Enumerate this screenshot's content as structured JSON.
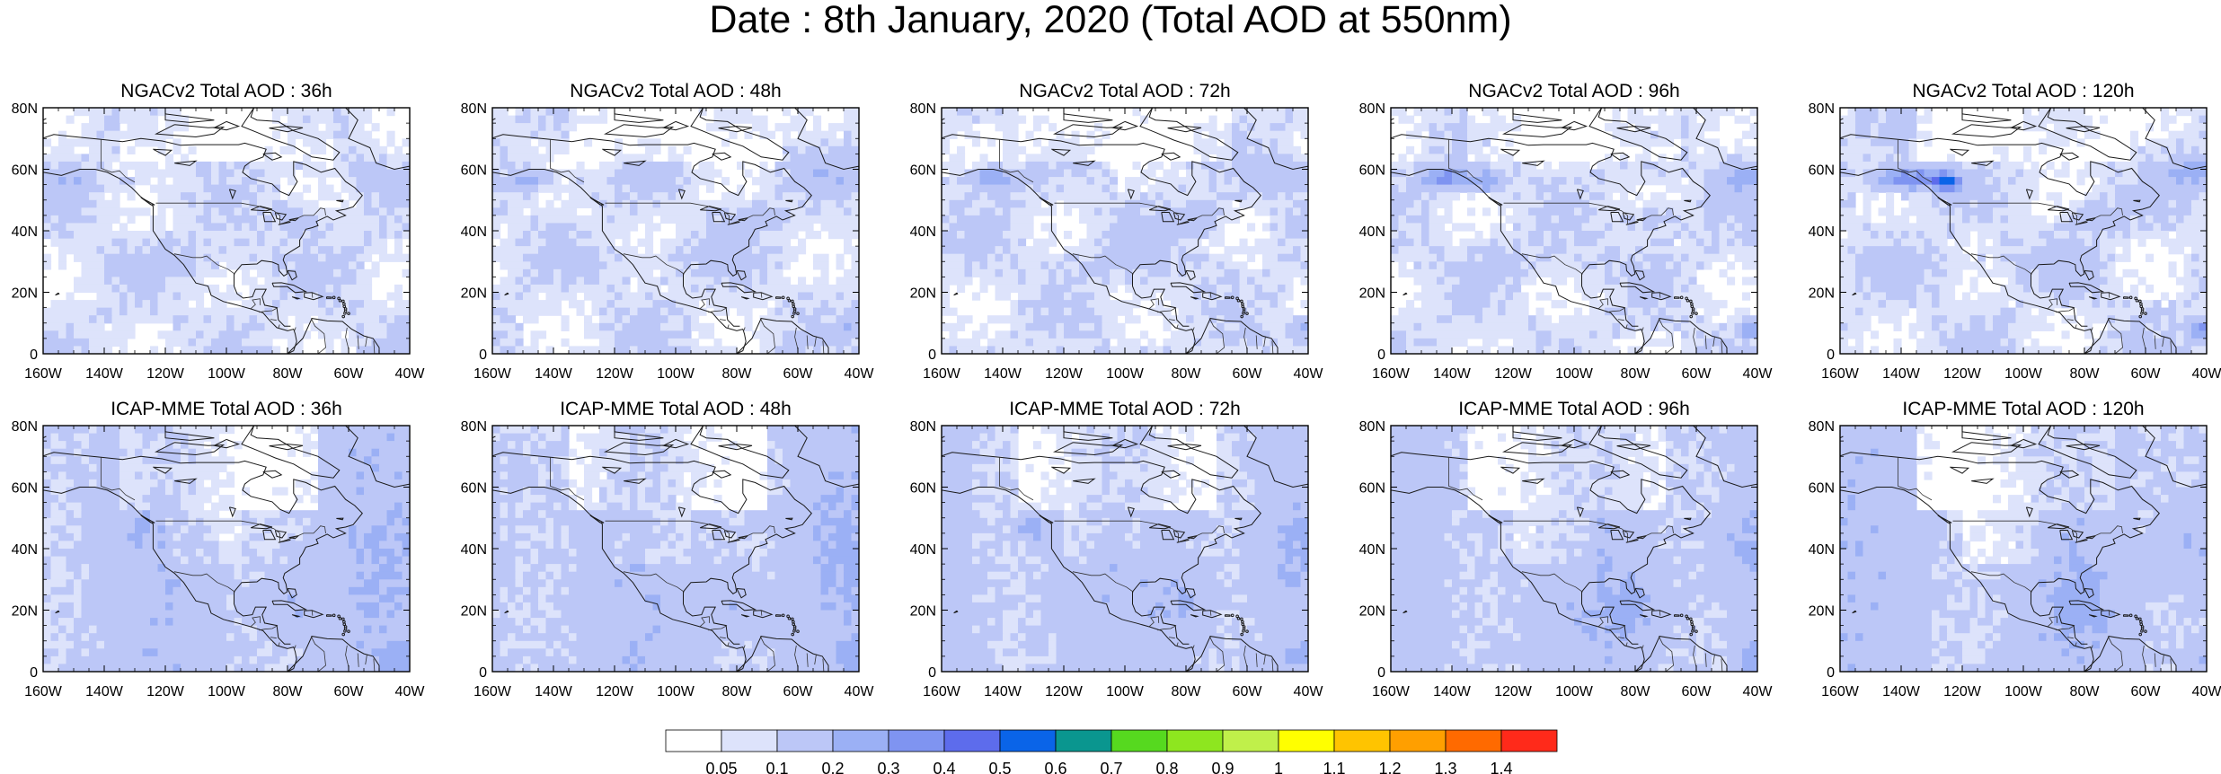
{
  "title": "Date : 8th January, 2020 (Total AOD at 550nm)",
  "panels": [
    {
      "row": "NGACv2",
      "title": "NGACv2 Total AOD : 36h",
      "lead": "36h"
    },
    {
      "row": "NGACv2",
      "title": "NGACv2 Total AOD : 48h",
      "lead": "48h"
    },
    {
      "row": "NGACv2",
      "title": "NGACv2 Total AOD : 72h",
      "lead": "72h"
    },
    {
      "row": "NGACv2",
      "title": "NGACv2 Total AOD : 96h",
      "lead": "96h"
    },
    {
      "row": "NGACv2",
      "title": "NGACv2 Total AOD : 120h",
      "lead": "120h"
    },
    {
      "row": "ICAP-MME",
      "title": "ICAP-MME Total AOD : 36h",
      "lead": "36h"
    },
    {
      "row": "ICAP-MME",
      "title": "ICAP-MME Total AOD : 48h",
      "lead": "48h"
    },
    {
      "row": "ICAP-MME",
      "title": "ICAP-MME Total AOD : 72h",
      "lead": "72h"
    },
    {
      "row": "ICAP-MME",
      "title": "ICAP-MME Total AOD : 96h",
      "lead": "96h"
    },
    {
      "row": "ICAP-MME",
      "title": "ICAP-MME Total AOD : 120h",
      "lead": "120h"
    }
  ],
  "lat_ticks": [
    "80N",
    "60N",
    "40N",
    "20N",
    "0"
  ],
  "lon_ticks": [
    "160W",
    "140W",
    "120W",
    "100W",
    "80W",
    "60W",
    "40W"
  ],
  "colorbar": {
    "labels": [
      "0.05",
      "0.1",
      "0.2",
      "0.3",
      "0.4",
      "0.5",
      "0.6",
      "0.7",
      "0.8",
      "0.9",
      "1",
      "1.1",
      "1.2",
      "1.3",
      "1.4"
    ],
    "colors": [
      "#ffffff",
      "#dde3fb",
      "#bcc7f7",
      "#9bb0f5",
      "#7f94f1",
      "#5d6cec",
      "#0a64e8",
      "#0a968f",
      "#56d91f",
      "#8ee61f",
      "#c0f04a",
      "#ffff00",
      "#ffc400",
      "#ff9f00",
      "#ff6a00",
      "#ff2a1a"
    ]
  }
}
